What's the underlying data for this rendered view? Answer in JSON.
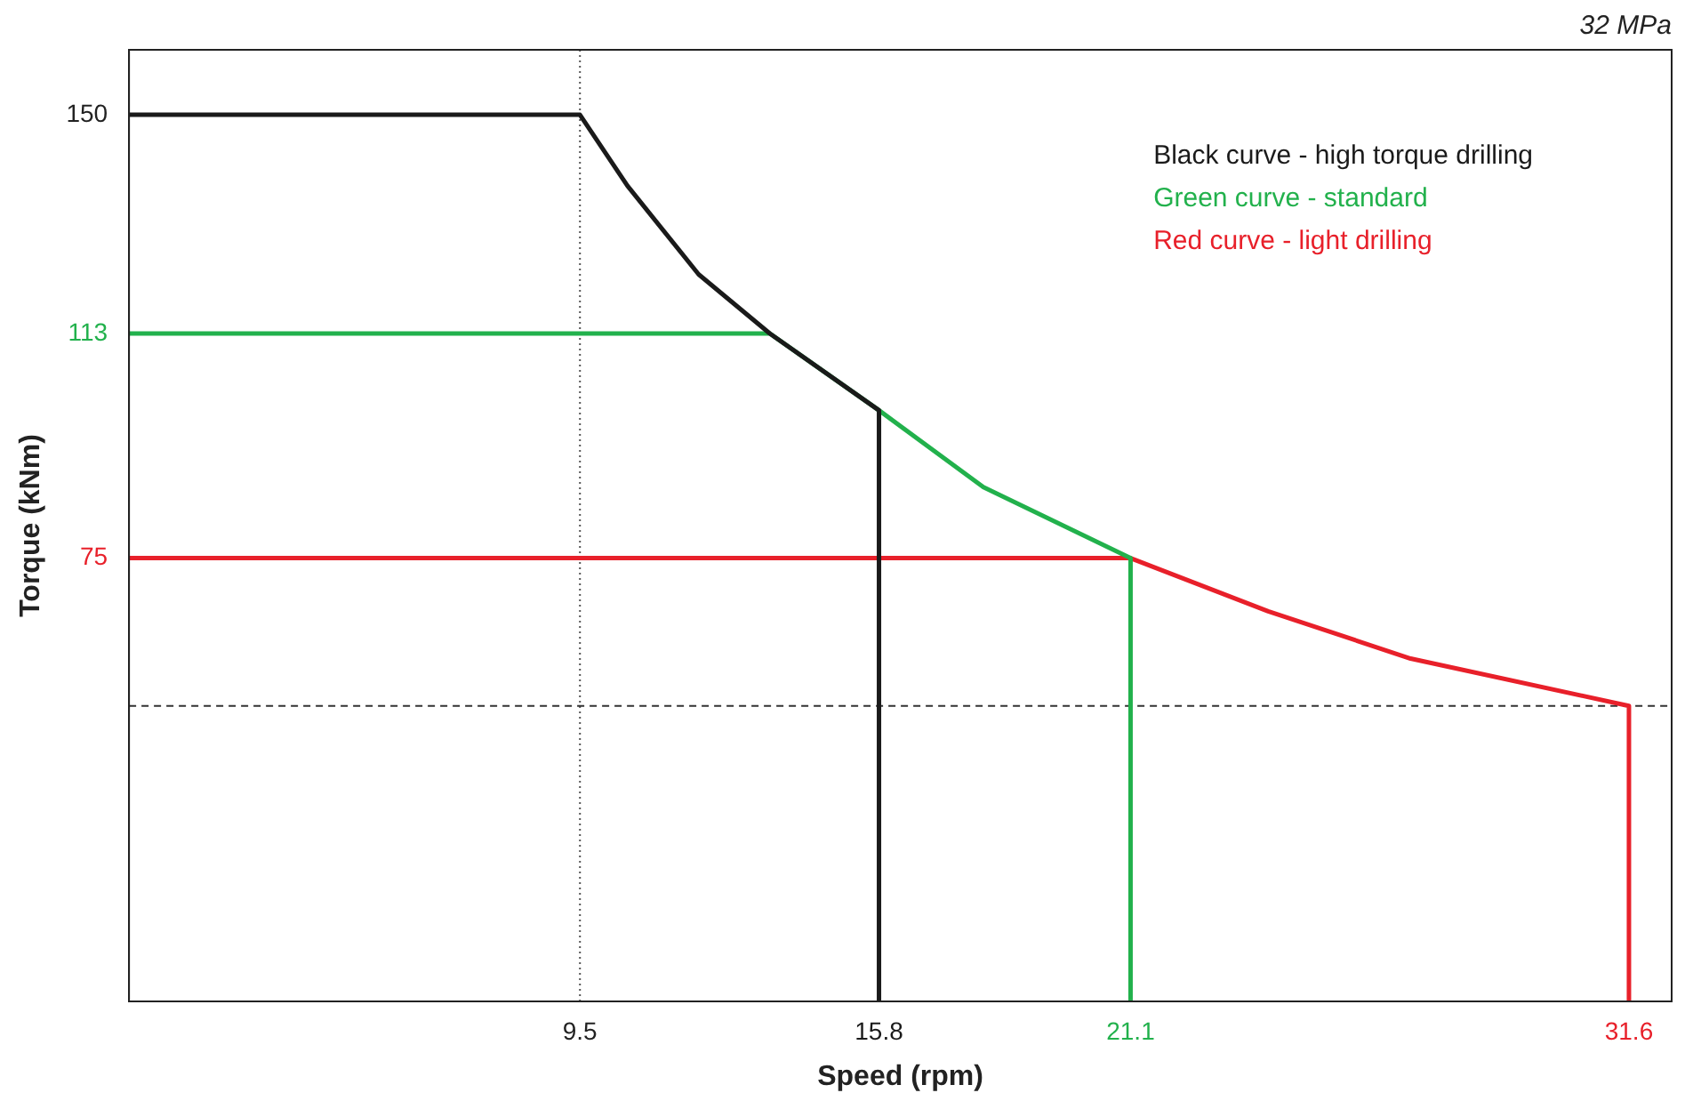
{
  "chart_data": {
    "type": "line",
    "title": "32 MPa",
    "xlabel": "Speed (rpm)",
    "ylabel": "Torque (kNm)",
    "xlim": [
      0,
      32.5
    ],
    "xticks": [
      9.5,
      15.8,
      21.1,
      31.6
    ],
    "ylim": [
      0,
      161
    ],
    "yticks": [
      75,
      113,
      150
    ],
    "series": [
      {
        "name": "Black curve - high torque drilling",
        "color": "#1a1a1a",
        "x": [
          0,
          9.5,
          10.5,
          12,
          13.5,
          15.8,
          15.8
        ],
        "values": [
          150,
          150,
          138,
          123,
          113,
          100,
          0
        ]
      },
      {
        "name": "Green curve - standard",
        "color": "#22b14c",
        "x": [
          0,
          13.5,
          15.8,
          18,
          21.1,
          21.1
        ],
        "values": [
          113,
          113,
          100,
          87,
          75,
          0
        ]
      },
      {
        "name": "Red curve - light drilling",
        "color": "#e8202a",
        "x": [
          0,
          21.1,
          24,
          27,
          31.6,
          31.6
        ],
        "values": [
          75,
          75,
          66,
          58,
          50,
          0
        ]
      }
    ],
    "ref_lines": [
      {
        "axis": "x",
        "value": 9.5,
        "line_style": "dotted",
        "color": "#555555"
      },
      {
        "axis": "y",
        "value": 50,
        "line_style": "dashed",
        "color": "#333333"
      }
    ],
    "legend": "top right",
    "marker": "none",
    "line_style": "solid",
    "grid": false
  }
}
